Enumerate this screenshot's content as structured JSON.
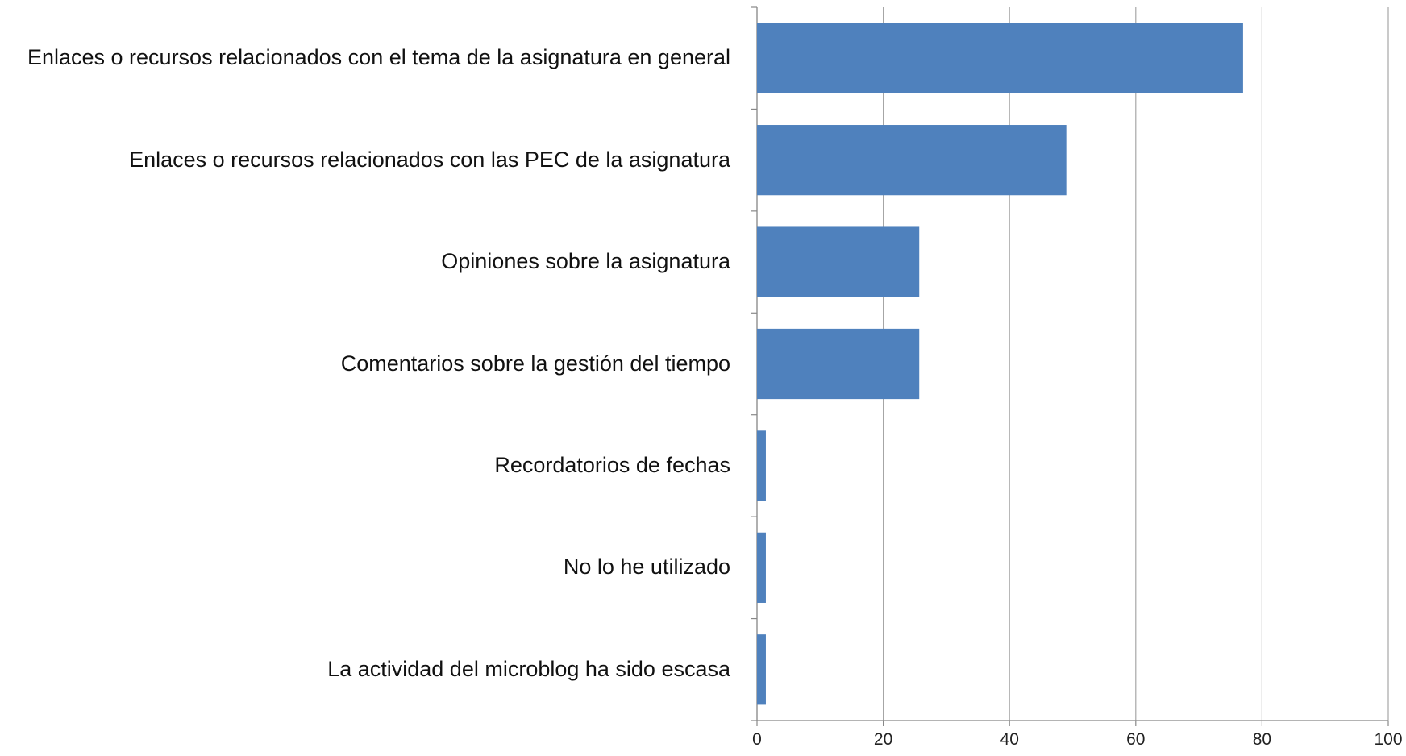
{
  "chart_data": {
    "type": "bar",
    "orientation": "horizontal",
    "categories": [
      "Enlaces o recursos relacionados con el tema de la asignatura en general",
      "Enlaces o recursos relacionados con las PEC de la asignatura",
      "Opiniones sobre la asignatura",
      "Comentarios sobre la gestión del tiempo",
      "Recordatorios de fechas",
      "No lo he utilizado",
      "La actividad del microblog ha sido escasa"
    ],
    "values": [
      77,
      49,
      25.7,
      25.7,
      1.4,
      1.4,
      1.4
    ],
    "color": "#4f81bd",
    "xlim": [
      0,
      100
    ],
    "xticks": [
      0,
      20,
      40,
      60,
      80,
      100
    ],
    "grid": true
  }
}
